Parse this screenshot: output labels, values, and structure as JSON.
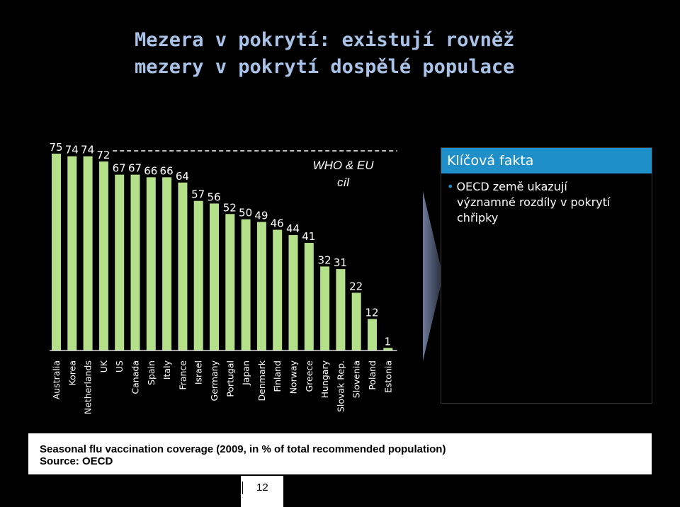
{
  "title": {
    "line1": "Mezera v pokrytí: existují rovněž",
    "line2": "mezery v pokrytí dospělé populace"
  },
  "chart_data": {
    "type": "bar",
    "categories": [
      "Australia",
      "Korea",
      "Netherlands",
      "UK",
      "US",
      "Canada",
      "Spain",
      "Italy",
      "France",
      "Israel",
      "Germany",
      "Portugal",
      "Japan",
      "Denmark",
      "Finland",
      "Norway",
      "Greece",
      "Hungary",
      "Slovak Rep.",
      "Slovenia",
      "Poland",
      "Estonia"
    ],
    "values": [
      75,
      74,
      74,
      72,
      67,
      67,
      66,
      66,
      64,
      57,
      56,
      52,
      50,
      49,
      46,
      44,
      41,
      32,
      31,
      22,
      12,
      1
    ],
    "ylim": [
      0,
      80
    ],
    "target": {
      "value": 75,
      "label_line1": "WHO & EU",
      "label_line2": "cíl"
    },
    "bar_color": "#b5e08a",
    "target_color": "#ffffff",
    "grid": false
  },
  "key_facts": {
    "header": "Klíčová fakta",
    "bullet_line1": "OECD země ukazují",
    "bullet_line2": "významné rozdíly v pokrytí",
    "bullet_line3": "chřipky"
  },
  "caption": {
    "line1": "Seasonal flu vaccination coverage  (2009, in % of total recommended population)",
    "line2": "Source: OECD"
  },
  "page_number": "12"
}
